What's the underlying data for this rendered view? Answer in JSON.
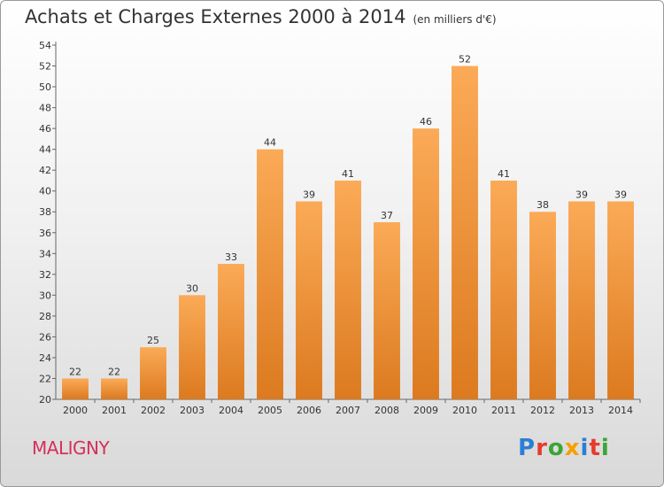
{
  "title": "Achats et Charges Externes 2000 à 2014",
  "unit_label": "(en milliers d'€)",
  "commune": "MALIGNY",
  "logo": {
    "text": "Proxiti",
    "letter_colors": [
      "#2a7fd4",
      "#e63b2e",
      "#3aa537",
      "#f5a000",
      "#2a7fd4",
      "#e63b2e",
      "#3aa537"
    ]
  },
  "colors": {
    "bar_light": "#fbaa57",
    "bar_dark": "#dc7a1f",
    "axis": "#666666",
    "grid": "#cccccc",
    "text": "#333333"
  },
  "chart_data": {
    "type": "bar",
    "title": "Achats et Charges Externes 2000 à 2014",
    "subtitle": "(en milliers d'€)",
    "categories": [
      "2000",
      "2001",
      "2002",
      "2003",
      "2004",
      "2005",
      "2006",
      "2007",
      "2008",
      "2009",
      "2010",
      "2011",
      "2012",
      "2013",
      "2014"
    ],
    "values": [
      22,
      22,
      25,
      30,
      33,
      44,
      39,
      41,
      37,
      46,
      52,
      41,
      38,
      39,
      39
    ],
    "ylim": [
      20,
      54
    ],
    "yticks": [
      20,
      22,
      24,
      26,
      28,
      30,
      32,
      34,
      36,
      38,
      40,
      42,
      44,
      46,
      48,
      50,
      52,
      54
    ],
    "data_labels": true,
    "grid": false,
    "legend": "none"
  }
}
